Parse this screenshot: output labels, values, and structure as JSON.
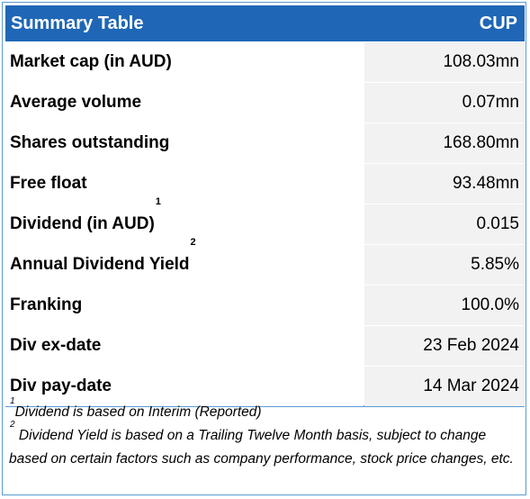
{
  "header": {
    "title": "Summary Table",
    "ticker": "CUP"
  },
  "rows": [
    {
      "label": "Market cap (in AUD)",
      "sup": "",
      "value": "108.03mn"
    },
    {
      "label": "Average volume",
      "sup": "",
      "value": "0.07mn"
    },
    {
      "label": "Shares outstanding",
      "sup": "",
      "value": "168.80mn"
    },
    {
      "label": "Free float",
      "sup": "",
      "value": "93.48mn"
    },
    {
      "label": "Dividend (in AUD)",
      "sup": "1",
      "value": "0.015"
    },
    {
      "label": "Annual Dividend Yield",
      "sup": "2",
      "value": "5.85%"
    },
    {
      "label": "Franking",
      "sup": "",
      "value": "100.0%"
    },
    {
      "label": "Div ex-date",
      "sup": "",
      "value": "23 Feb 2024"
    },
    {
      "label": "Div pay-date",
      "sup": "",
      "value": "14 Mar 2024"
    }
  ],
  "notes": [
    {
      "sup": "1",
      "text": "Dividend  is based on Interim (Reported)"
    },
    {
      "sup": "2",
      "text": " Dividend Yield is based on a Trailing Twelve Month basis, subject to change based on certain factors such as company performance, stock price changes, etc."
    }
  ],
  "colors": {
    "header_bg": "#1f67b6",
    "header_text": "#ffffff",
    "value_cell_bg": "#f2f2f2",
    "border": "#5b9bd5"
  }
}
